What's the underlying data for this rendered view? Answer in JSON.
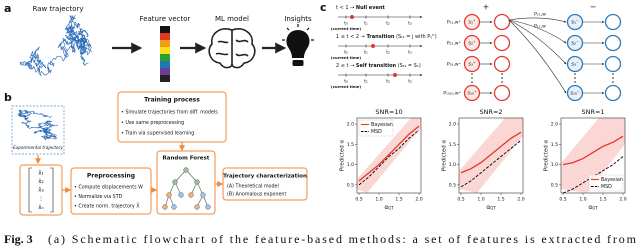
{
  "figure": {
    "a": {
      "label": "a",
      "raw": "Raw trajectory",
      "feature": "Feature vector",
      "model": "ML model",
      "insights": "Insights"
    },
    "b": {
      "label": "b",
      "experimental": "Experimental trajectory",
      "matrix": [
        "x̃₁",
        "x̃₂",
        "x̃₃",
        "⋮",
        "x̃ₙ"
      ],
      "training_title": "Training process",
      "training_items": [
        "• Simulate trajectories from diff. models",
        "• Use same preprocessing",
        "• Train via supervised learning"
      ],
      "preprocessing_title": "Preprocessing",
      "preprocessing_items": [
        "• Compute displacements W",
        "• Normalize via STD",
        "• Create norm. trajectory X̃"
      ],
      "forest": "Random Forest",
      "characterization_title": "Trajectory characterization",
      "characterization_items": [
        "(A) Theoretical model",
        "(B) Anomalous exponent"
      ]
    },
    "c": {
      "label": "c",
      "rows": [
        {
          "condition": "t < 1 → ",
          "event": "Null event"
        },
        {
          "condition": "1 ≤ t < 2 → ",
          "event": "Transition",
          "note": " (Sₜ₁ = j with Pᵢⱼᵗʳ)"
        },
        {
          "condition": "2 ≤ t → ",
          "event": "Self transition",
          "note": " (Sₜ₂ = S₁)"
        }
      ],
      "times": [
        "t₀",
        "t₁",
        "t₂",
        "t₃"
      ],
      "current": "(current time)",
      "plus": "+",
      "minus": "−",
      "plus_probs": [
        "P₁₁,w⁺",
        "P₂₂,w⁺",
        "P₃₃,w⁺",
        "P₁₀₁₀,w⁺"
      ],
      "plus_states": [
        "s₁⁺",
        "s₂⁺",
        "s₃⁺",
        "s₁₀⁺"
      ],
      "minus_states": [
        "s₁⁻",
        "s₂⁻",
        "s₃⁻",
        "s₁₀⁻"
      ],
      "cross_probs": [
        "P₁₁,w",
        "P₁₂,w"
      ]
    }
  },
  "chart_data": [
    {
      "type": "line",
      "title": "SNR=10",
      "xlabel": "α",
      "xlabel_sub": "GT",
      "ylabel": "Predicted α",
      "x": [
        0.5,
        0.75,
        1.0,
        1.25,
        1.5,
        1.75,
        2.0
      ],
      "series": [
        {
          "name": "Bayesian",
          "color": "#e8352e",
          "linestyle": "solid",
          "values": [
            0.6,
            0.8,
            1.0,
            1.25,
            1.5,
            1.75,
            1.95
          ]
        },
        {
          "name": "MSD",
          "color": "#000000",
          "linestyle": "dashed",
          "values": [
            0.5,
            0.7,
            0.95,
            1.2,
            1.4,
            1.65,
            1.85
          ]
        }
      ],
      "xlim": [
        0.45,
        2.05
      ],
      "ylim": [
        0.3,
        2.15
      ],
      "xticks": [
        {
          "value": 0.5,
          "label": "0.5"
        },
        {
          "value": 1.0,
          "label": "1.0"
        },
        {
          "value": 1.5,
          "label": "1.5"
        },
        {
          "value": 2.0,
          "label": "2.0"
        }
      ],
      "yticks": [
        {
          "value": 0.5,
          "label": "0.5"
        },
        {
          "value": 1.0,
          "label": "1.0"
        },
        {
          "value": 1.5,
          "label": "1.5"
        },
        {
          "value": 2.0,
          "label": "2.0"
        }
      ],
      "legend": "upper left"
    },
    {
      "type": "line",
      "title": "SNR=2",
      "xlabel": "α",
      "xlabel_sub": "GT",
      "ylabel": "Predicted α",
      "x": [
        0.5,
        0.75,
        1.0,
        1.25,
        1.5,
        1.75,
        2.0
      ],
      "series": [
        {
          "name": "Bayesian",
          "color": "#e8352e",
          "linestyle": "solid",
          "values": [
            0.8,
            0.9,
            1.05,
            1.25,
            1.45,
            1.65,
            1.8
          ]
        },
        {
          "name": "MSD",
          "color": "#000000",
          "linestyle": "dashed",
          "values": [
            0.45,
            0.6,
            0.8,
            1.0,
            1.2,
            1.4,
            1.6
          ]
        }
      ],
      "xlim": [
        0.45,
        2.05
      ],
      "ylim": [
        0.3,
        2.15
      ],
      "xticks": [
        {
          "value": 0.5,
          "label": "0.5"
        },
        {
          "value": 1.0,
          "label": "1.0"
        },
        {
          "value": 1.5,
          "label": "1.5"
        },
        {
          "value": 2.0,
          "label": "2.0"
        }
      ],
      "yticks": [
        {
          "value": 0.5,
          "label": "0.5"
        },
        {
          "value": 1.0,
          "label": "1.0"
        },
        {
          "value": 1.5,
          "label": "1.5"
        },
        {
          "value": 2.0,
          "label": "2.0"
        }
      ]
    },
    {
      "type": "line",
      "title": "SNR=1",
      "xlabel": "α",
      "xlabel_sub": "GT",
      "ylabel": "Predicted α",
      "x": [
        0.5,
        0.75,
        1.0,
        1.25,
        1.5,
        1.75,
        2.0
      ],
      "series": [
        {
          "name": "Bayesian",
          "color": "#e8352e",
          "linestyle": "solid",
          "values": [
            1.0,
            1.05,
            1.15,
            1.3,
            1.45,
            1.55,
            1.7
          ]
        },
        {
          "name": "MSD",
          "color": "#000000",
          "linestyle": "dashed",
          "values": [
            0.3,
            0.4,
            0.55,
            0.7,
            0.85,
            1.0,
            1.2
          ]
        }
      ],
      "xlim": [
        0.45,
        2.05
      ],
      "ylim": [
        0.3,
        2.15
      ],
      "xticks": [
        {
          "value": 0.5,
          "label": "0.5"
        },
        {
          "value": 1.0,
          "label": "1.0"
        },
        {
          "value": 1.5,
          "label": "1.5"
        },
        {
          "value": 2.0,
          "label": "2.0"
        }
      ],
      "yticks": [
        {
          "value": 0.5,
          "label": "0.5"
        },
        {
          "value": 1.0,
          "label": "1.0"
        },
        {
          "value": 1.5,
          "label": "1.5"
        },
        {
          "value": 2.0,
          "label": "2.0"
        }
      ],
      "legend": "lower right"
    }
  ],
  "caption": {
    "label": "Fig. 3",
    "text": "(a) Schematic flowchart of the feature-based methods: a set of features is extracted from"
  }
}
